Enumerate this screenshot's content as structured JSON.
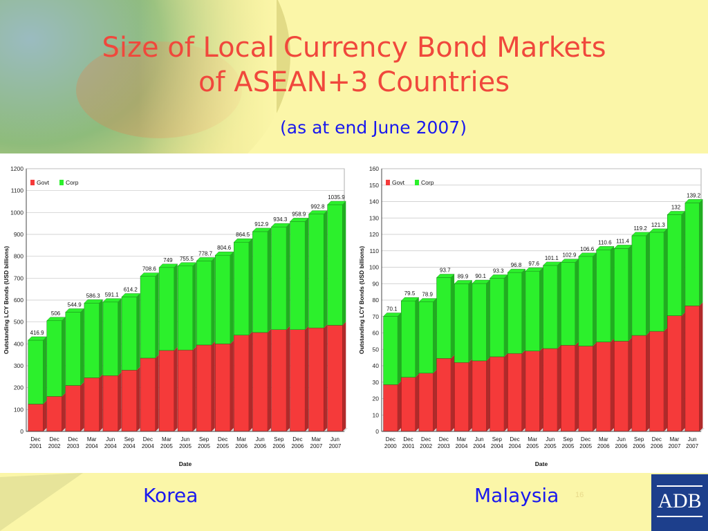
{
  "slide": {
    "title_line1": "Size of Local Currency Bond Markets",
    "title_line2": "of ASEAN+3 Countries",
    "subtitle": "(as at end June 2007)",
    "page_number": "16",
    "logo_text": "ADB",
    "colors": {
      "title": "#f0483c",
      "subtitle": "#1919ee",
      "govt": "#f53a3a",
      "corp": "#2cf02c"
    }
  },
  "chart_data": [
    {
      "type": "bar",
      "stacked": true,
      "country_label": "Korea",
      "xlabel": "Date",
      "ylabel": "Outstanding LCY Bonds (USD billions)",
      "ylim": [
        0,
        1200
      ],
      "ytick_step": 100,
      "legend": [
        "Govt",
        "Corp"
      ],
      "legend_position": "top-left",
      "grid": true,
      "categories": [
        [
          "Dec",
          "2001"
        ],
        [
          "Dec",
          "2002"
        ],
        [
          "Dec",
          "2003"
        ],
        [
          "Mar",
          "2004"
        ],
        [
          "Jun",
          "2004"
        ],
        [
          "Sep",
          "2004"
        ],
        [
          "Dec",
          "2004"
        ],
        [
          "Mar",
          "2005"
        ],
        [
          "Jun",
          "2005"
        ],
        [
          "Sep",
          "2005"
        ],
        [
          "Dec",
          "2005"
        ],
        [
          "Mar",
          "2006"
        ],
        [
          "Jun",
          "2006"
        ],
        [
          "Sep",
          "2006"
        ],
        [
          "Dec",
          "2006"
        ],
        [
          "Mar",
          "2007"
        ],
        [
          "Jun",
          "2007"
        ]
      ],
      "series": [
        {
          "name": "Govt",
          "values": [
            125,
            160,
            210,
            245,
            255,
            280,
            335,
            370,
            372,
            395,
            400,
            440,
            452,
            465,
            465,
            473,
            485
          ]
        },
        {
          "name": "Corp",
          "values": [
            291.9,
            346,
            334.9,
            341.3,
            336.1,
            334.2,
            373.6,
            379,
            383.5,
            383.7,
            404.6,
            424.5,
            460.9,
            469.3,
            493.9,
            519.8,
            550.9
          ]
        }
      ],
      "totals": [
        "416.9",
        "506",
        "544.9",
        "586.3",
        "591.1",
        "614.2",
        "708.6",
        "749",
        "755.5",
        "778.7",
        "804.6",
        "864.5",
        "912.9",
        "934.3",
        "958.9",
        "992.8",
        "1035.9"
      ]
    },
    {
      "type": "bar",
      "stacked": true,
      "country_label": "Malaysia",
      "xlabel": "Date",
      "ylabel": "Outstanding LCY Bonds (USD billions)",
      "ylim": [
        0,
        160
      ],
      "ytick_step": 10,
      "legend": [
        "Govt",
        "Corp"
      ],
      "legend_position": "top-left",
      "grid": true,
      "categories": [
        [
          "Dec",
          "2000"
        ],
        [
          "Dec",
          "2001"
        ],
        [
          "Dec",
          "2002"
        ],
        [
          "Dec",
          "2003"
        ],
        [
          "Mar",
          "2004"
        ],
        [
          "Jun",
          "2004"
        ],
        [
          "Sep",
          "2004"
        ],
        [
          "Dec",
          "2004"
        ],
        [
          "Mar",
          "2005"
        ],
        [
          "Jun",
          "2005"
        ],
        [
          "Sep",
          "2005"
        ],
        [
          "Dec",
          "2005"
        ],
        [
          "Mar",
          "2006"
        ],
        [
          "Jun",
          "2006"
        ],
        [
          "Sep",
          "2006"
        ],
        [
          "Dec",
          "2006"
        ],
        [
          "Mar",
          "2007"
        ],
        [
          "Jun",
          "2007"
        ]
      ],
      "series": [
        {
          "name": "Govt",
          "values": [
            28.5,
            33,
            35.5,
            44.5,
            42,
            43,
            45.5,
            47.5,
            49,
            50.5,
            52.5,
            52,
            54.5,
            55,
            58.5,
            61,
            70.5,
            76.5
          ]
        },
        {
          "name": "Corp",
          "values": [
            41.6,
            46.5,
            43.4,
            49.2,
            47.9,
            47.1,
            47.8,
            49.3,
            48.6,
            50.6,
            50.4,
            54.6,
            56.1,
            56.4,
            60.7,
            60.3,
            61.5,
            62.7
          ]
        }
      ],
      "totals": [
        "70.1",
        "79.5",
        "78.9",
        "93.7",
        "89.9",
        "90.1",
        "93.3",
        "96.8",
        "97.6",
        "101.1",
        "102.9",
        "106.6",
        "110.6",
        "111.4",
        "119.2",
        "121.3",
        "132",
        "139.2"
      ]
    }
  ]
}
